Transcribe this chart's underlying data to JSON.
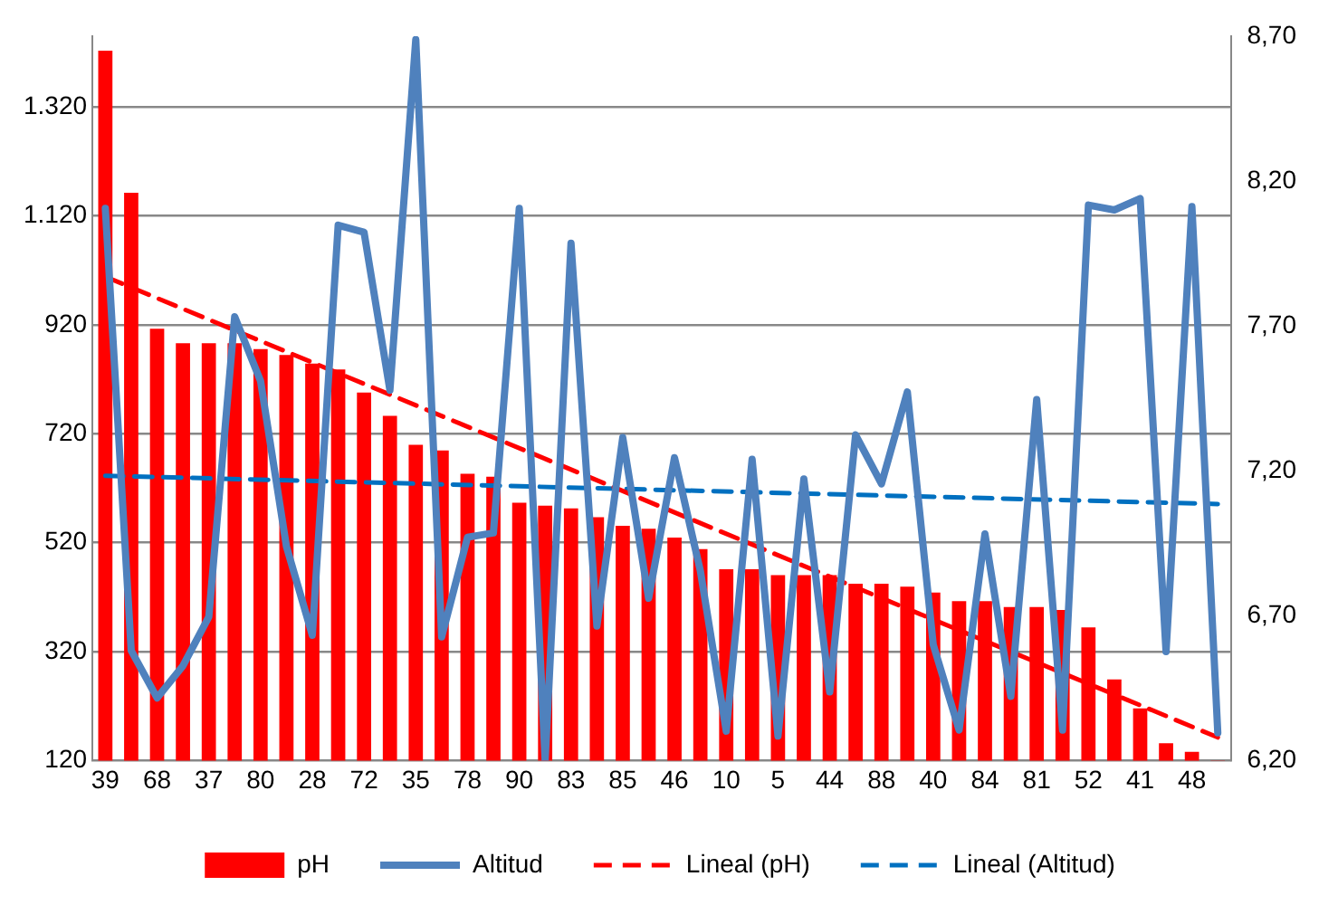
{
  "chart_data": {
    "type": "bar",
    "categories": [
      "39",
      null,
      "68",
      null,
      "37",
      null,
      "80",
      null,
      "28",
      null,
      "72",
      null,
      "35",
      null,
      "78",
      null,
      "90",
      null,
      "83",
      null,
      "85",
      null,
      "46",
      null,
      "10",
      null,
      "5",
      null,
      "44",
      null,
      "88",
      null,
      "40",
      null,
      "84",
      null,
      "81",
      null,
      "52",
      null,
      "41",
      null,
      "48",
      null
    ],
    "series": [
      {
        "name": "pH",
        "axis": "y2",
        "color": "#ff0000",
        "values": [
          8.65,
          8.16,
          7.69,
          7.64,
          7.64,
          7.64,
          7.62,
          7.6,
          7.57,
          7.55,
          7.47,
          7.39,
          7.29,
          7.27,
          7.19,
          7.18,
          7.09,
          7.08,
          7.07,
          7.04,
          7.01,
          7.0,
          6.97,
          6.93,
          6.86,
          6.86,
          6.84,
          6.84,
          6.84,
          6.81,
          6.81,
          6.8,
          6.78,
          6.75,
          6.75,
          6.73,
          6.73,
          6.72,
          6.66,
          6.48,
          6.38,
          6.26,
          6.23,
          6.2
        ]
      },
      {
        "type": "line",
        "name": "Altitud",
        "axis": "y",
        "color": "#4f81bd",
        "marker": "none",
        "line_style": "solid",
        "values": [
          1134,
          322,
          235,
          294,
          384,
          935,
          817,
          513,
          350,
          1103,
          1090,
          800,
          1444,
          347,
          530,
          538,
          1134,
          120,
          1070,
          367,
          713,
          418,
          676,
          468,
          174,
          673,
          165,
          637,
          246,
          718,
          628,
          797,
          333,
          176,
          536,
          238,
          783,
          176,
          1140,
          1131,
          1152,
          320,
          1137,
          171
        ]
      },
      {
        "type": "line",
        "name": "Lineal (pH)",
        "axis": "y2",
        "color": "#ff0000",
        "marker": "none",
        "line_style": "dashed",
        "values": [
          7.87,
          null,
          null,
          null,
          null,
          null,
          null,
          null,
          null,
          null,
          null,
          null,
          null,
          null,
          null,
          null,
          null,
          null,
          null,
          null,
          null,
          null,
          null,
          null,
          null,
          null,
          null,
          null,
          null,
          null,
          null,
          null,
          null,
          null,
          null,
          null,
          null,
          null,
          null,
          null,
          null,
          null,
          null,
          6.28
        ]
      },
      {
        "type": "line",
        "name": "Lineal (Altitud)",
        "axis": "y",
        "color": "#0070c0",
        "marker": "none",
        "line_style": "dashed",
        "values": [
          643,
          null,
          null,
          null,
          null,
          null,
          null,
          null,
          null,
          null,
          null,
          null,
          null,
          null,
          null,
          null,
          null,
          null,
          null,
          null,
          null,
          null,
          null,
          null,
          null,
          null,
          null,
          null,
          null,
          null,
          null,
          null,
          null,
          null,
          null,
          null,
          null,
          null,
          null,
          null,
          null,
          null,
          null,
          591
        ]
      }
    ],
    "ylim": [
      120,
      1450
    ],
    "yticks": [
      {
        "value": 120,
        "label": "120"
      },
      {
        "value": 320,
        "label": "320"
      },
      {
        "value": 520,
        "label": "520"
      },
      {
        "value": 720,
        "label": "720"
      },
      {
        "value": 920,
        "label": "920"
      },
      {
        "value": 1120,
        "label": "1.120"
      },
      {
        "value": 1320,
        "label": "1.320"
      }
    ],
    "y2lim": [
      6.2,
      8.7
    ],
    "y2ticks": [
      {
        "value": 6.2,
        "label": "6,20"
      },
      {
        "value": 6.7,
        "label": "6,70"
      },
      {
        "value": 7.2,
        "label": "7,20"
      },
      {
        "value": 7.7,
        "label": "7,70"
      },
      {
        "value": 8.2,
        "label": "8,20"
      },
      {
        "value": 8.7,
        "label": "8,70"
      }
    ],
    "grid": "y",
    "legend": "bottom"
  }
}
